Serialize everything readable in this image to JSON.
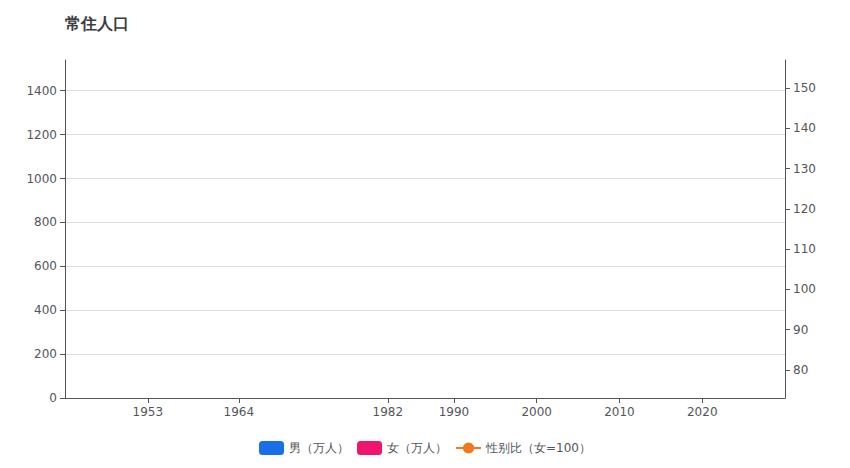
{
  "chart_data": {
    "type": "bar",
    "title": "常住人口",
    "series": [
      {
        "name": "男（万人）",
        "type": "bar",
        "color": "#1a6fe8",
        "values": []
      },
      {
        "name": "女（万人）",
        "type": "bar",
        "color": "#f0146e",
        "values": []
      },
      {
        "name": "性别比（女=100）",
        "type": "line",
        "color": "#f07820",
        "marker": "circle",
        "axis": "y2",
        "values": []
      }
    ],
    "xlim": [
      1943,
      2030
    ],
    "xticks": [
      1953,
      1964,
      1982,
      1990,
      2000,
      2010,
      2020
    ],
    "ylim": [
      0,
      1540
    ],
    "yticks": [
      0,
      200,
      400,
      600,
      800,
      1000,
      1200,
      1400
    ],
    "y2lim": [
      73,
      157
    ],
    "y2ticks": [
      80,
      90,
      100,
      110,
      120,
      130,
      140,
      150
    ],
    "grid": true,
    "legend": "bottom"
  }
}
